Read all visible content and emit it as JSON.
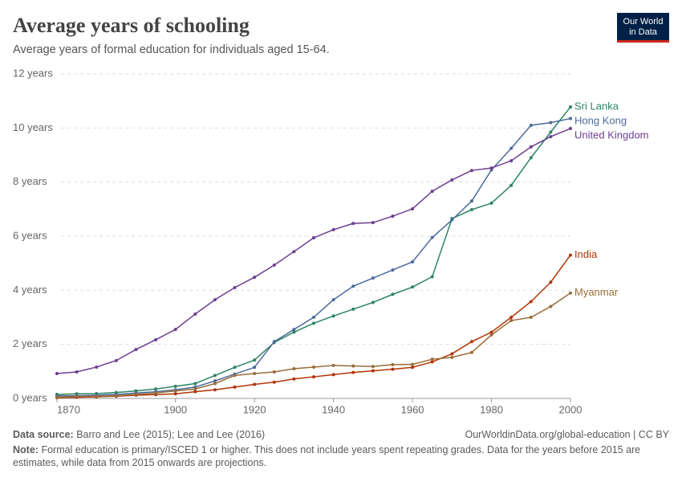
{
  "chart_data": {
    "type": "line",
    "title": "Average years of schooling",
    "subtitle": "Average years of formal education for individuals aged 15-64.",
    "logo": [
      "Our World",
      "in Data"
    ],
    "x": [
      1870,
      1875,
      1880,
      1885,
      1890,
      1895,
      1900,
      1905,
      1910,
      1915,
      1920,
      1925,
      1930,
      1935,
      1940,
      1945,
      1950,
      1955,
      1960,
      1965,
      1970,
      1975,
      1980,
      1985,
      1990,
      1995,
      2000
    ],
    "xlim": [
      1870,
      2000
    ],
    "xticks": [
      1870,
      1900,
      1920,
      1940,
      1960,
      1980,
      2000
    ],
    "ylim": [
      0,
      12
    ],
    "yticks": [
      {
        "value": 0,
        "label": "0 years"
      },
      {
        "value": 2,
        "label": "2 years"
      },
      {
        "value": 4,
        "label": "4 years"
      },
      {
        "value": 6,
        "label": "6 years"
      },
      {
        "value": 8,
        "label": "8 years"
      },
      {
        "value": 10,
        "label": "10 years"
      },
      {
        "value": 12,
        "label": "12 years"
      }
    ],
    "grid": true,
    "series": [
      {
        "name": "Sri Lanka",
        "color": "#2c8465",
        "values": [
          0.15,
          0.17,
          0.18,
          0.22,
          0.28,
          0.35,
          0.45,
          0.55,
          0.85,
          1.15,
          1.42,
          2.07,
          2.45,
          2.78,
          3.05,
          3.3,
          3.55,
          3.85,
          4.12,
          4.5,
          6.65,
          6.98,
          7.22,
          7.88,
          8.9,
          9.85,
          10.78
        ]
      },
      {
        "name": "Hong Kong",
        "color": "#4c6a9c",
        "values": [
          0.1,
          0.1,
          0.12,
          0.15,
          0.2,
          0.25,
          0.32,
          0.42,
          0.65,
          0.9,
          1.15,
          2.1,
          2.55,
          3.0,
          3.65,
          4.15,
          4.45,
          4.75,
          5.05,
          5.95,
          6.6,
          7.3,
          8.45,
          9.25,
          10.1,
          10.2,
          10.35
        ]
      },
      {
        "name": "United Kingdom",
        "color": "#6d3e91",
        "values": [
          0.92,
          0.98,
          1.16,
          1.4,
          1.81,
          2.17,
          2.55,
          3.12,
          3.65,
          4.1,
          4.48,
          4.93,
          5.43,
          5.94,
          6.24,
          6.47,
          6.5,
          6.74,
          7.01,
          7.66,
          8.08,
          8.43,
          8.52,
          8.79,
          9.3,
          9.68,
          9.98
        ]
      },
      {
        "name": "India",
        "color": "#b13507",
        "values": [
          0.03,
          0.04,
          0.06,
          0.08,
          0.12,
          0.14,
          0.17,
          0.25,
          0.32,
          0.42,
          0.52,
          0.6,
          0.72,
          0.8,
          0.88,
          0.96,
          1.02,
          1.08,
          1.15,
          1.35,
          1.65,
          2.1,
          2.45,
          3.0,
          3.58,
          4.3,
          5.3
        ]
      },
      {
        "name": "Myanmar",
        "color": "#996d39",
        "values": [
          0.05,
          0.07,
          0.08,
          0.1,
          0.15,
          0.2,
          0.28,
          0.35,
          0.55,
          0.85,
          0.92,
          0.98,
          1.1,
          1.16,
          1.22,
          1.2,
          1.18,
          1.25,
          1.26,
          1.45,
          1.52,
          1.7,
          2.35,
          2.88,
          3.0,
          3.4,
          3.9
        ]
      }
    ],
    "source_label": "Data source:",
    "source": "Barro and Lee (2015); Lee and Lee (2016)",
    "credit": "OurWorldinData.org/global-education | CC BY",
    "note_label": "Note:",
    "note": "Formal education is primary/ISCED 1 or higher. This does not include years spent repeating grades. Data for the years before 2015 are estimates, while data from 2015 onwards are projections."
  }
}
